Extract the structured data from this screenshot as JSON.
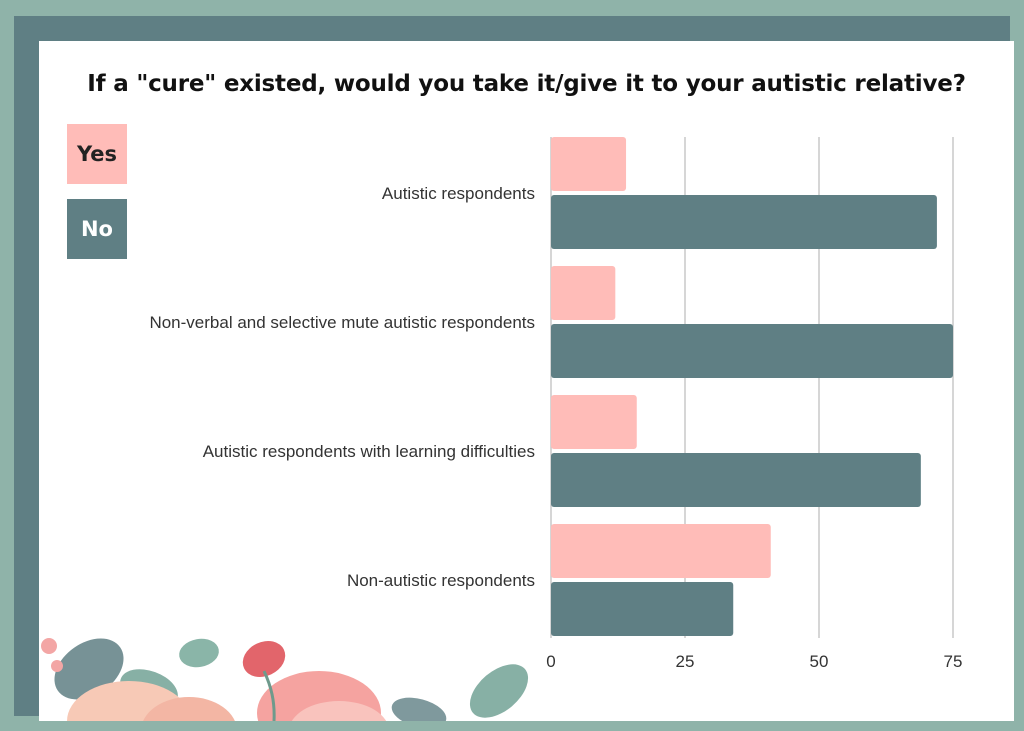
{
  "title": "If a \"cure\" existed, would you take it/give it to your autistic relative?",
  "legend": {
    "yes_label": "Yes",
    "no_label": "No"
  },
  "colors": {
    "yes": "#ffbcb8",
    "no": "#5f7f84",
    "grid": "#c8c8c8",
    "frame": "#5f7f84",
    "background": "#8fb3a9"
  },
  "chart_data": {
    "type": "bar",
    "orientation": "horizontal",
    "title": "If a \"cure\" existed, would you take it/give it to your autistic relative?",
    "categories": [
      "Autistic respondents",
      "Non-verbal and selective mute autistic respondents",
      "Autistic respondents with learning difficulties",
      "Non-autistic respondents"
    ],
    "series": [
      {
        "name": "Yes",
        "values": [
          14,
          12,
          16,
          41
        ]
      },
      {
        "name": "No",
        "values": [
          72,
          75,
          69,
          34
        ]
      }
    ],
    "xlim": [
      0,
      75
    ],
    "xticks": [
      0,
      25,
      50,
      75
    ],
    "grid": true,
    "legend_position": "top-left"
  }
}
